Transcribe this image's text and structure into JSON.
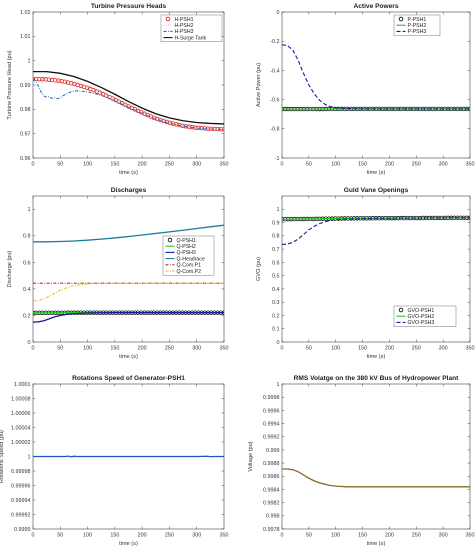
{
  "chart_data": [
    {
      "id": "p1",
      "type": "line",
      "title": "Turbine Pressure Heads",
      "xlabel": "time (s)",
      "ylabel": "Turbine Pressure Head (pu)",
      "xlim": [
        0,
        350
      ],
      "ylim": [
        0.96,
        1.02
      ],
      "xticks": [
        0,
        50,
        100,
        150,
        200,
        250,
        300,
        350
      ],
      "yticks": [
        0.96,
        0.97,
        0.98,
        0.99,
        1,
        1.01,
        1.02
      ],
      "ytick_labels": [
        "0.96",
        "0.97",
        "0.98",
        "0.99",
        "1",
        "1.01",
        "1.02"
      ],
      "legend_position": "top-right",
      "series": [
        {
          "name": "H-PSH1",
          "color": "#e02020",
          "style": "circles",
          "x": [
            0,
            25,
            50,
            75,
            100,
            125,
            150,
            175,
            200,
            225,
            250,
            275,
            300,
            325,
            350
          ],
          "y": [
            0.9925,
            0.9923,
            0.9917,
            0.9905,
            0.9888,
            0.9866,
            0.984,
            0.9812,
            0.9786,
            0.9762,
            0.9745,
            0.9732,
            0.9724,
            0.972,
            0.9718
          ]
        },
        {
          "name": "H-PSH2",
          "color": "#f2a6a6",
          "style": "dotted",
          "x": [
            0,
            25,
            50,
            75,
            100,
            125,
            150,
            175,
            200,
            225,
            250,
            275,
            300,
            325,
            350
          ],
          "y": [
            0.9925,
            0.9923,
            0.9917,
            0.9905,
            0.9888,
            0.9866,
            0.984,
            0.9812,
            0.9786,
            0.9762,
            0.9745,
            0.9732,
            0.9724,
            0.972,
            0.9718
          ]
        },
        {
          "name": "H-PSH3",
          "color": "#2a6fb5",
          "style": "dashdot",
          "x": [
            0,
            5,
            10,
            15,
            20,
            25,
            30,
            35,
            40,
            45,
            50,
            55,
            60,
            65,
            70,
            75,
            80,
            85,
            90,
            95,
            100,
            110,
            125,
            150,
            175,
            200,
            225,
            250,
            275,
            300,
            325,
            350
          ],
          "y": [
            0.9925,
            0.9915,
            0.9895,
            0.987,
            0.9855,
            0.985,
            0.9852,
            0.9845,
            0.9848,
            0.9844,
            0.9848,
            0.9856,
            0.9862,
            0.9867,
            0.9872,
            0.9874,
            0.9876,
            0.9876,
            0.9874,
            0.9873,
            0.9872,
            0.9866,
            0.9858,
            0.9835,
            0.9808,
            0.9783,
            0.976,
            0.9743,
            0.9731,
            0.9723,
            0.9719,
            0.9717
          ]
        },
        {
          "name": "H-Surge Tank",
          "color": "#111111",
          "style": "solid",
          "x": [
            0,
            25,
            50,
            75,
            100,
            125,
            150,
            175,
            200,
            225,
            250,
            275,
            300,
            325,
            350
          ],
          "y": [
            0.9955,
            0.9955,
            0.9948,
            0.9935,
            0.9915,
            0.989,
            0.9862,
            0.9832,
            0.9805,
            0.9782,
            0.9765,
            0.9753,
            0.9746,
            0.9742,
            0.974
          ]
        }
      ]
    },
    {
      "id": "p2",
      "type": "line",
      "title": "Active Powers",
      "xlabel": "time (s)",
      "ylabel": "Active Power (pu)",
      "xlim": [
        0,
        350
      ],
      "ylim": [
        -1,
        0
      ],
      "xticks": [
        0,
        50,
        100,
        150,
        200,
        250,
        300,
        350
      ],
      "yticks": [
        -1,
        -0.8,
        -0.6,
        -0.4,
        -0.2,
        0
      ],
      "ytick_labels": [
        "-1",
        "-0.8",
        "-0.6",
        "-0.4",
        "-0.2",
        "0"
      ],
      "legend_position": "top-right",
      "series": [
        {
          "name": "P-PSH1",
          "color": "#111111",
          "style": "circles",
          "x": [
            0,
            50,
            100,
            150,
            200,
            250,
            300,
            350
          ],
          "y": [
            -0.665,
            -0.665,
            -0.664,
            -0.664,
            -0.664,
            -0.664,
            -0.664,
            -0.664
          ]
        },
        {
          "name": "P-PSH2",
          "color": "#22c322",
          "style": "solid",
          "x": [
            0,
            50,
            100,
            150,
            200,
            250,
            300,
            350
          ],
          "y": [
            -0.665,
            -0.665,
            -0.664,
            -0.664,
            -0.664,
            -0.664,
            -0.664,
            -0.664
          ]
        },
        {
          "name": "P-PSH3",
          "color": "#1a1a9c",
          "style": "dashed",
          "x": [
            0,
            10,
            20,
            30,
            40,
            50,
            60,
            70,
            80,
            90,
            100,
            120,
            150,
            200,
            250,
            300,
            350
          ],
          "y": [
            -0.225,
            -0.23,
            -0.26,
            -0.33,
            -0.42,
            -0.5,
            -0.56,
            -0.605,
            -0.632,
            -0.648,
            -0.656,
            -0.661,
            -0.663,
            -0.664,
            -0.664,
            -0.664,
            -0.664
          ]
        }
      ]
    },
    {
      "id": "p3",
      "type": "line",
      "title": "Discharges",
      "xlabel": "time (s)",
      "ylabel": "Discharge (pu)",
      "xlim": [
        0,
        350
      ],
      "ylim": [
        0,
        1.1
      ],
      "xticks": [
        0,
        50,
        100,
        150,
        200,
        250,
        300,
        350
      ],
      "yticks": [
        0,
        0.2,
        0.4,
        0.6,
        0.8,
        1
      ],
      "ytick_labels": [
        "0",
        "0.2",
        "0.4",
        "0.6",
        "0.8",
        "1"
      ],
      "legend_position": "right",
      "series": [
        {
          "name": "Q-PSH1",
          "color": "#111111",
          "style": "circles",
          "x": [
            0,
            50,
            100,
            150,
            200,
            250,
            300,
            350
          ],
          "y": [
            0.22,
            0.22,
            0.221,
            0.221,
            0.221,
            0.221,
            0.221,
            0.221
          ]
        },
        {
          "name": "Q-PSH2",
          "color": "#22c322",
          "style": "solid",
          "x": [
            0,
            50,
            100,
            150,
            200,
            250,
            300,
            350
          ],
          "y": [
            0.22,
            0.22,
            0.221,
            0.221,
            0.221,
            0.221,
            0.221,
            0.221
          ]
        },
        {
          "name": "Q-PSH3",
          "color": "#1a1a9c",
          "style": "solid",
          "x": [
            0,
            10,
            20,
            30,
            40,
            50,
            60,
            70,
            80,
            100,
            150,
            200,
            250,
            300,
            350
          ],
          "y": [
            0.15,
            0.152,
            0.16,
            0.175,
            0.19,
            0.2,
            0.207,
            0.212,
            0.215,
            0.219,
            0.221,
            0.221,
            0.221,
            0.221,
            0.221
          ]
        },
        {
          "name": "Q-Headrace",
          "color": "#1f7a9c",
          "style": "solid",
          "x": [
            0,
            25,
            50,
            75,
            100,
            125,
            150,
            175,
            200,
            225,
            250,
            275,
            300,
            325,
            350
          ],
          "y": [
            0.755,
            0.755,
            0.757,
            0.761,
            0.767,
            0.775,
            0.784,
            0.795,
            0.806,
            0.818,
            0.83,
            0.842,
            0.855,
            0.868,
            0.88
          ]
        },
        {
          "name": "Q-Com.P1",
          "color": "#b03020",
          "style": "dashdot",
          "x": [
            0,
            50,
            100,
            150,
            200,
            250,
            300,
            350
          ],
          "y": [
            0.443,
            0.443,
            0.443,
            0.443,
            0.443,
            0.443,
            0.443,
            0.443
          ]
        },
        {
          "name": "Q-Com.P2",
          "color": "#e8b830",
          "style": "dashdot",
          "x": [
            0,
            10,
            20,
            30,
            40,
            50,
            60,
            70,
            80,
            90,
            100,
            120,
            150,
            200,
            250,
            300,
            350
          ],
          "y": [
            0.31,
            0.312,
            0.325,
            0.345,
            0.368,
            0.39,
            0.406,
            0.419,
            0.428,
            0.434,
            0.438,
            0.441,
            0.442,
            0.443,
            0.443,
            0.443,
            0.443
          ]
        }
      ]
    },
    {
      "id": "p4",
      "type": "line",
      "title": "Guld Vane Openings",
      "xlabel": "time (s)",
      "ylabel": "GVO (pu)",
      "xlim": [
        0,
        350
      ],
      "ylim": [
        0,
        1.1
      ],
      "xticks": [
        0,
        50,
        100,
        150,
        200,
        250,
        300,
        350
      ],
      "yticks": [
        0,
        0.1,
        0.2,
        0.3,
        0.4,
        0.5,
        0.6,
        0.7,
        0.8,
        0.9,
        1
      ],
      "ytick_labels": [
        "0",
        "0.1",
        "0.2",
        "0.3",
        "0.4",
        "0.5",
        "0.6",
        "0.7",
        "0.8",
        "0.9",
        "1"
      ],
      "legend_position": "bottom-right",
      "series": [
        {
          "name": "GVO-PSH1",
          "color": "#111111",
          "style": "circles",
          "x": [
            0,
            50,
            100,
            150,
            200,
            250,
            300,
            350
          ],
          "y": [
            0.925,
            0.927,
            0.93,
            0.932,
            0.933,
            0.934,
            0.935,
            0.936
          ]
        },
        {
          "name": "GVO-PSH2",
          "color": "#22c322",
          "style": "solid",
          "x": [
            0,
            50,
            100,
            150,
            200,
            250,
            300,
            350
          ],
          "y": [
            0.925,
            0.927,
            0.93,
            0.932,
            0.933,
            0.934,
            0.935,
            0.936
          ]
        },
        {
          "name": "GVO-PSH3",
          "color": "#1a1a9c",
          "style": "dashed",
          "x": [
            0,
            10,
            20,
            30,
            40,
            50,
            60,
            70,
            80,
            90,
            100,
            120,
            150,
            200,
            250,
            300,
            350
          ],
          "y": [
            0.735,
            0.738,
            0.75,
            0.775,
            0.81,
            0.845,
            0.872,
            0.892,
            0.906,
            0.915,
            0.921,
            0.926,
            0.93,
            0.933,
            0.934,
            0.935,
            0.936
          ]
        }
      ]
    },
    {
      "id": "p5",
      "type": "line",
      "title": "Rotations Speed of Generator-PSH1",
      "xlabel": "time (s)",
      "ylabel": "Rotations Speed (pu)",
      "xlim": [
        0,
        350
      ],
      "ylim": [
        0.9999,
        1.0001
      ],
      "xticks": [
        0,
        50,
        100,
        150,
        200,
        250,
        300,
        350
      ],
      "yticks": [
        0.9999,
        0.99995,
        1,
        1.00005,
        1.0001
      ],
      "ytick_labels": [
        "0.9999",
        "0.99992",
        "0.99994",
        "0.99996",
        "0.99998",
        "1",
        "1.00002",
        "1.00004",
        "1.00006",
        "1.00008",
        "1.0001"
      ],
      "ytick_values": [
        0.9999,
        0.99992,
        0.99994,
        0.99996,
        0.99998,
        1,
        1.00002,
        1.00004,
        1.00006,
        1.00008,
        1.0001
      ],
      "series": [
        {
          "name": "",
          "color": "#2050c8",
          "style": "solid",
          "x": [
            0,
            40,
            60,
            65,
            70,
            75,
            80,
            90,
            100,
            150,
            200,
            250,
            300,
            320,
            325,
            330,
            350
          ],
          "y": [
            1,
            1,
            1,
            1.0000005,
            0.9999995,
            1.0000004,
            1,
            1,
            1,
            1,
            1,
            1,
            1,
            1.0000003,
            0.9999997,
            1,
            1
          ]
        }
      ]
    },
    {
      "id": "p6",
      "type": "line",
      "title": "RMS Volatge on the 380 kV Bus of Hydropower Plant",
      "xlabel": "time (s)",
      "ylabel": "Voltage (pu)",
      "xlim": [
        0,
        350
      ],
      "ylim": [
        0.9978,
        1
      ],
      "xticks": [
        0,
        50,
        100,
        150,
        200,
        250,
        300,
        350
      ],
      "ytick_values": [
        0.9978,
        0.998,
        0.9982,
        0.9984,
        0.9986,
        0.9988,
        0.999,
        0.9992,
        0.9994,
        0.9996,
        0.9998,
        1
      ],
      "ytick_labels": [
        "0.9978",
        "0.998",
        "0.9982",
        "0.9984",
        "0.9986",
        "0.9988",
        "0.999",
        "0.9992",
        "0.9994",
        "0.9996",
        "0.9998",
        "1"
      ],
      "series": [
        {
          "name": "",
          "color": "#8a6a2a",
          "style": "solid",
          "x": [
            0,
            10,
            20,
            30,
            40,
            50,
            60,
            70,
            80,
            90,
            100,
            120,
            150,
            200,
            250,
            300,
            350
          ],
          "y": [
            0.99871,
            0.99871,
            0.9987,
            0.99867,
            0.99862,
            0.99857,
            0.99853,
            0.9985,
            0.99848,
            0.99846,
            0.99845,
            0.99844,
            0.99844,
            0.99844,
            0.99844,
            0.99844,
            0.99844
          ]
        }
      ]
    }
  ]
}
